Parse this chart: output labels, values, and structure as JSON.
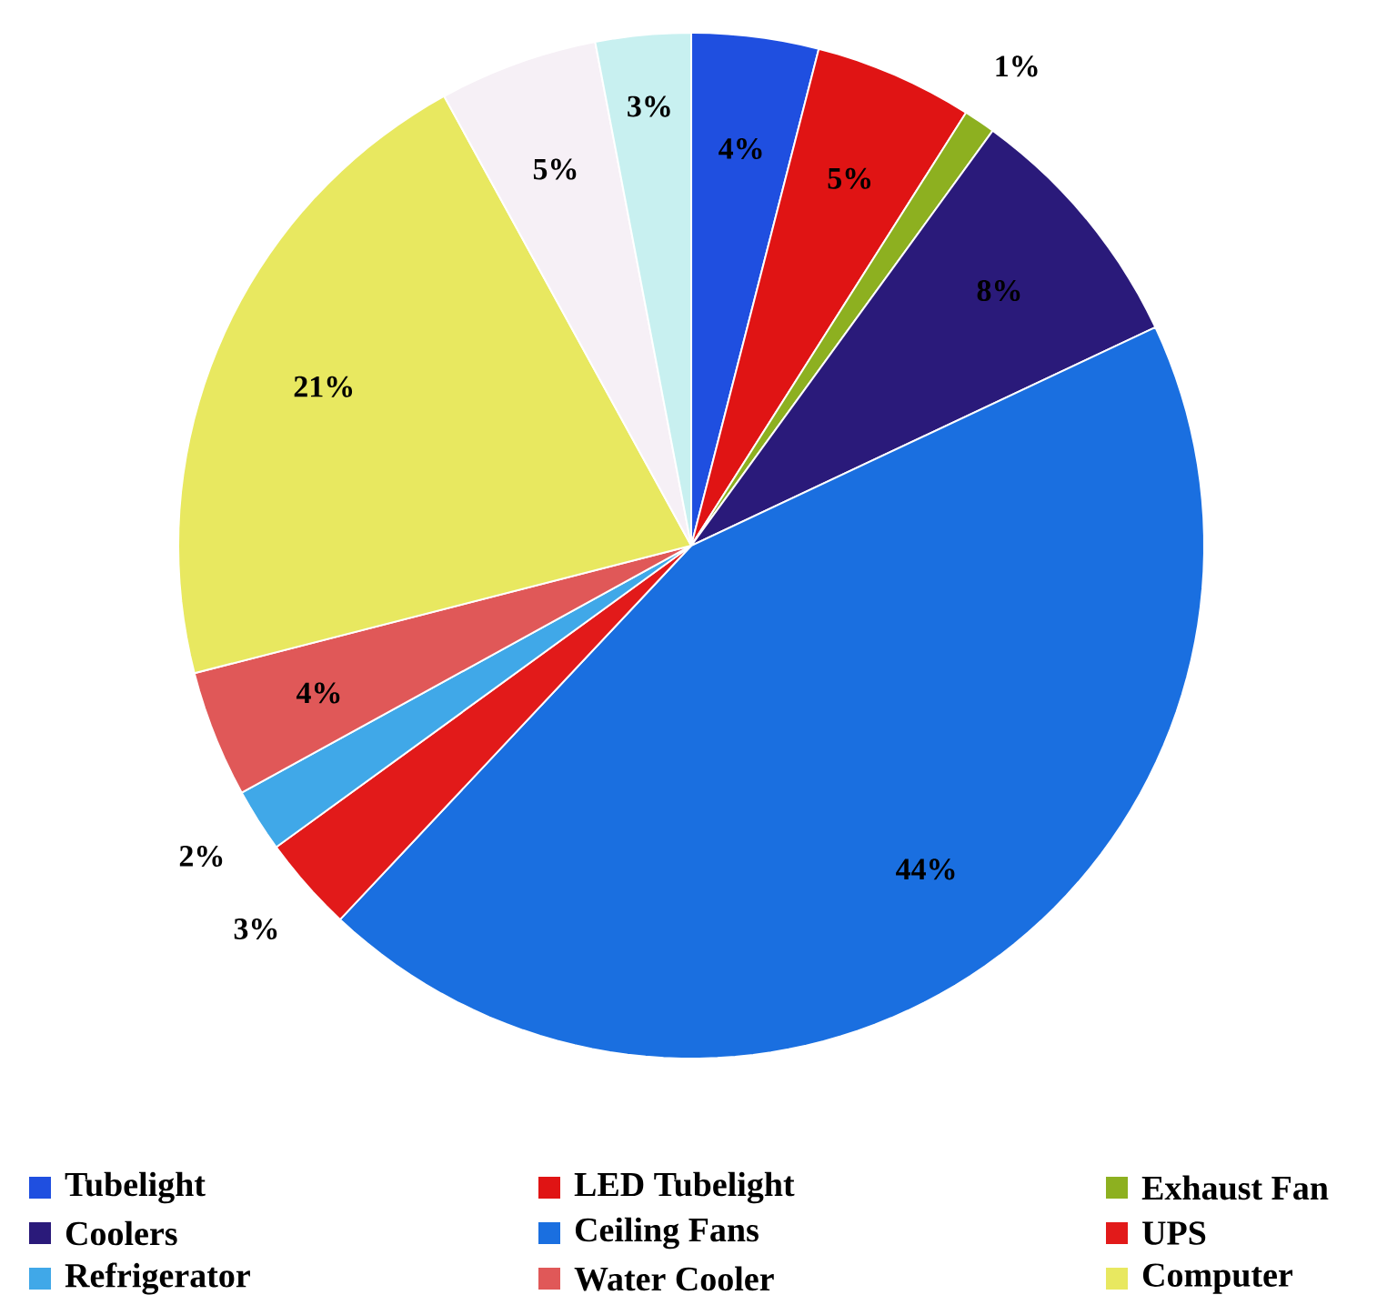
{
  "chart_data": {
    "type": "pie",
    "categories": [
      "Tubelight",
      "LED Tubelight",
      "Exhaust Fan",
      "Coolers",
      "Ceiling Fans",
      "UPS",
      "Refrigerator",
      "Water Cooler",
      "Computer",
      null,
      null
    ],
    "values": [
      4,
      5,
      1,
      8,
      44,
      3,
      2,
      4,
      21,
      5,
      3
    ],
    "colors": [
      "#1f4fe0",
      "#e01414",
      "#8db020",
      "#2a1a7a",
      "#1a6fe0",
      "#e21a1a",
      "#40a8e8",
      "#e05858",
      "#e8e860",
      "#f6f0f6",
      "#c8f0f0"
    ],
    "value_labels": [
      "4%",
      "5%",
      "1%",
      "8%",
      "44%",
      "3%",
      "2%",
      "4%",
      "21%",
      "5%",
      "3%"
    ],
    "legend": "bottom"
  }
}
